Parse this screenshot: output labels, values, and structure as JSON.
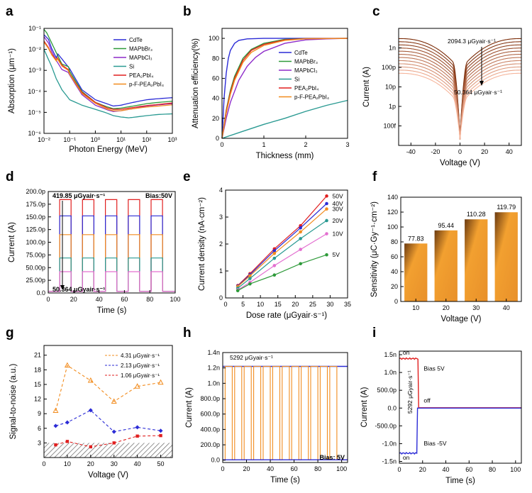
{
  "panel_labels": [
    "a",
    "b",
    "c",
    "d",
    "e",
    "f",
    "g",
    "h",
    "i"
  ],
  "chart_data": [
    {
      "panel": "a",
      "type": "line",
      "xlabel": "Photon Energy (MeV)",
      "ylabel": "Absorption (μm⁻¹)",
      "xscale": "log",
      "yscale": "log",
      "xlim": [
        0.01,
        1000
      ],
      "ylim": [
        1e-06,
        0.1
      ],
      "xticks": [
        "10⁻²",
        "10⁻¹",
        "10⁰",
        "10¹",
        "10²",
        "10³"
      ],
      "yticks": [
        "10⁻⁶",
        "10⁻⁵",
        "10⁻⁴",
        "10⁻³",
        "10⁻²",
        "10⁻¹"
      ],
      "legend_position": "top-right",
      "series": [
        {
          "name": "CdTe",
          "color": "#2b2bd6",
          "x": [
            0.01,
            0.015,
            0.02,
            0.03,
            0.035,
            0.05,
            0.1,
            0.3,
            1,
            3,
            5,
            10,
            30,
            100,
            300,
            1000
          ],
          "y": [
            0.05,
            0.03,
            0.011,
            0.004,
            0.006,
            0.0035,
            0.0012,
            0.00012,
            4e-05,
            2.5e-05,
            2e-05,
            2.2e-05,
            3e-05,
            4e-05,
            4.5e-05,
            5e-05
          ]
        },
        {
          "name": "MAPbBr₃",
          "color": "#2e9a3a",
          "x": [
            0.01,
            0.013,
            0.02,
            0.03,
            0.05,
            0.09,
            0.1,
            0.3,
            1,
            3,
            5,
            10,
            30,
            100,
            300,
            1000
          ],
          "y": [
            0.09,
            0.06,
            0.02,
            0.007,
            0.002,
            0.0015,
            0.0009,
            0.0001,
            3e-05,
            1.8e-05,
            1.5e-05,
            1.6e-05,
            2e-05,
            2.6e-05,
            3e-05,
            3.4e-05
          ]
        },
        {
          "name": "MAPbCl₃",
          "color": "#8d2bc9",
          "x": [
            0.01,
            0.015,
            0.02,
            0.03,
            0.05,
            0.088,
            0.1,
            0.3,
            1,
            3,
            5,
            10,
            30,
            100,
            300,
            1000
          ],
          "y": [
            0.04,
            0.02,
            0.008,
            0.003,
            0.0011,
            0.0008,
            0.0006,
            7e-05,
            2.2e-05,
            1.3e-05,
            1.1e-05,
            1.2e-05,
            1.5e-05,
            2e-05,
            2.3e-05,
            2.6e-05
          ]
        },
        {
          "name": "Si",
          "color": "#2a9a92",
          "x": [
            0.01,
            0.02,
            0.03,
            0.05,
            0.1,
            0.3,
            1,
            3,
            5,
            10,
            20,
            30,
            100,
            300,
            1000
          ],
          "y": [
            0.01,
            0.0015,
            0.0004,
            0.00012,
            4e-05,
            2.2e-05,
            1.4e-05,
            9e-06,
            7e-06,
            6e-06,
            5.5e-06,
            5.8e-06,
            7e-06,
            8e-06,
            8.5e-06
          ]
        },
        {
          "name": "PEA₂PbI₄",
          "color": "#e01f1f",
          "x": [
            0.01,
            0.015,
            0.02,
            0.03,
            0.033,
            0.05,
            0.088,
            0.1,
            0.3,
            1,
            3,
            5,
            10,
            30,
            100,
            300,
            1000
          ],
          "y": [
            0.025,
            0.012,
            0.006,
            0.003,
            0.004,
            0.0018,
            0.0011,
            0.0007,
            9e-05,
            3e-05,
            1.6e-05,
            1.4e-05,
            1.4e-05,
            1.7e-05,
            2.1e-05,
            2.4e-05,
            2.8e-05
          ]
        },
        {
          "name": "p-F-PEA₂PbI₄",
          "color": "#f28c1e",
          "x": [
            0.01,
            0.015,
            0.02,
            0.03,
            0.033,
            0.05,
            0.088,
            0.1,
            0.3,
            1,
            3,
            5,
            10,
            30,
            100,
            300,
            1000
          ],
          "y": [
            0.022,
            0.011,
            0.0055,
            0.0028,
            0.0036,
            0.0016,
            0.001,
            0.00065,
            8e-05,
            2.7e-05,
            1.4e-05,
            1.2e-05,
            1.2e-05,
            1.5e-05,
            1.8e-05,
            2e-05,
            2.3e-05
          ]
        }
      ]
    },
    {
      "panel": "b",
      "type": "line",
      "xlabel": "Thickness (mm)",
      "ylabel": "Attenuation efficiency(%)",
      "xlim": [
        0,
        3
      ],
      "ylim": [
        0,
        110
      ],
      "xticks": [
        "0",
        "1",
        "2",
        "3"
      ],
      "yticks": [
        "0",
        "20",
        "40",
        "60",
        "80",
        "100"
      ],
      "legend_position": "right",
      "series": [
        {
          "name": "CdTe",
          "color": "#2b2bd6",
          "x": [
            0,
            0.05,
            0.1,
            0.15,
            0.2,
            0.3,
            0.4,
            0.6,
            1,
            3
          ],
          "y": [
            0,
            40,
            65,
            80,
            88,
            95,
            98,
            99.5,
            100,
            100
          ]
        },
        {
          "name": "MAPbBr₃",
          "color": "#2e9a3a",
          "x": [
            0,
            0.1,
            0.2,
            0.3,
            0.5,
            0.7,
            1,
            1.5,
            2,
            3
          ],
          "y": [
            0,
            28,
            48,
            62,
            80,
            89,
            95,
            99,
            99.8,
            100
          ]
        },
        {
          "name": "MAPbCl₃",
          "color": "#8d2bc9",
          "x": [
            0,
            0.1,
            0.2,
            0.4,
            0.6,
            0.8,
            1,
            1.5,
            2,
            2.5,
            3
          ],
          "y": [
            0,
            20,
            36,
            58,
            72,
            81,
            87,
            95,
            98.5,
            99.5,
            100
          ]
        },
        {
          "name": "Si",
          "color": "#2a9a92",
          "x": [
            0,
            0.5,
            1,
            1.5,
            2,
            2.5,
            3
          ],
          "y": [
            0,
            7,
            14,
            20,
            27,
            33,
            38
          ]
        },
        {
          "name": "PEA₂PbI₄",
          "color": "#e01f1f",
          "x": [
            0,
            0.1,
            0.2,
            0.3,
            0.5,
            0.7,
            1,
            1.5,
            2,
            3
          ],
          "y": [
            0,
            27,
            46,
            60,
            78,
            88,
            94,
            98.5,
            99.7,
            100
          ]
        },
        {
          "name": "p-F-PEA₂PbI₄",
          "color": "#f28c1e",
          "x": [
            0,
            0.1,
            0.2,
            0.3,
            0.5,
            0.7,
            1,
            1.5,
            2,
            3
          ],
          "y": [
            0,
            25,
            44,
            58,
            76,
            86,
            93,
            98,
            99.6,
            100
          ]
        }
      ]
    },
    {
      "panel": "c",
      "type": "line",
      "xlabel": "Voltage (V)",
      "ylabel": "Current (A)",
      "xlim": [
        -50,
        50
      ],
      "yscale": "log",
      "ylim": [
        1e-14,
        1e-08
      ],
      "xticks": [
        "-40",
        "-20",
        "0",
        "20",
        "40"
      ],
      "yticks": [
        "100f",
        "1p",
        "10p",
        "100p",
        "1n"
      ],
      "annotations": [
        "2094.3 μGyair·s⁻¹",
        "50.364 μGyair·s⁻¹"
      ],
      "series_count": 12,
      "color_range": [
        "#7a2a06",
        "#f6b59b"
      ],
      "max_current": 3e-09,
      "min_current": 5e-11
    },
    {
      "panel": "d",
      "type": "line",
      "xlabel": "Time (s)",
      "ylabel": "Current (A)",
      "xlim": [
        0,
        100
      ],
      "ylim": [
        0,
        200
      ],
      "xticks": [
        "0",
        "20",
        "40",
        "60",
        "80",
        "100"
      ],
      "yticks": [
        "0.0",
        "25.00p",
        "50.00p",
        "75.00p",
        "100.0p",
        "125.0p",
        "150.0p",
        "175.0p",
        "200.0p"
      ],
      "annotations": [
        "419.85 μGyair·s⁻¹",
        "50.364 μGyair·s⁻¹",
        "Bias:50V"
      ],
      "on_periods": [
        [
          9,
          18
        ],
        [
          27,
          36
        ],
        [
          45,
          54
        ],
        [
          63,
          72
        ],
        [
          81,
          90
        ]
      ],
      "series": [
        {
          "color": "#e01f1f",
          "on_value": 184,
          "off_value": 3
        },
        {
          "color": "#2b2bd6",
          "on_value": 152,
          "off_value": 3
        },
        {
          "color": "#f28c1e",
          "on_value": 115,
          "off_value": 3
        },
        {
          "color": "#2a9a92",
          "on_value": 69,
          "off_value": 3
        },
        {
          "color": "#e36fd0",
          "on_value": 42,
          "off_value": 3
        }
      ]
    },
    {
      "panel": "e",
      "type": "scatter",
      "xlabel": "Dose rate (μGyair·s⁻¹)",
      "ylabel": "Current density (nA·cm⁻²)",
      "xlim": [
        0,
        35
      ],
      "ylim": [
        0,
        4
      ],
      "xticks": [
        "0",
        "5",
        "10",
        "15",
        "20",
        "25",
        "30",
        "35"
      ],
      "yticks": [
        "0",
        "1",
        "2",
        "3",
        "4"
      ],
      "x": [
        3.5,
        7,
        14,
        21.5,
        29
      ],
      "series": [
        {
          "name": "50V",
          "color": "#e01f1f",
          "values": [
            0.46,
            0.9,
            1.82,
            2.68,
            3.78
          ]
        },
        {
          "name": "40V",
          "color": "#2b2bd6",
          "values": [
            0.44,
            0.86,
            1.75,
            2.6,
            3.5
          ]
        },
        {
          "name": "30V",
          "color": "#f28c1e",
          "values": [
            0.42,
            0.82,
            1.65,
            2.45,
            3.3
          ]
        },
        {
          "name": "20V",
          "color": "#2a9a92",
          "values": [
            0.36,
            0.72,
            1.47,
            2.2,
            2.87
          ]
        },
        {
          "name": "10V",
          "color": "#e36fd0",
          "values": [
            0.3,
            0.58,
            1.2,
            1.8,
            2.38
          ]
        },
        {
          "name": "5V",
          "color": "#2e9a3a",
          "values": [
            0.27,
            0.52,
            0.85,
            1.27,
            1.6
          ]
        }
      ]
    },
    {
      "panel": "f",
      "type": "bar",
      "xlabel": "Voltage (V)",
      "ylabel": "Sensitivity (μC·Gy⁻¹·cm⁻²)",
      "ylim": [
        0,
        140
      ],
      "categories": [
        "10",
        "20",
        "30",
        "40"
      ],
      "values": [
        77.83,
        95.44,
        110.28,
        119.79
      ],
      "labels": [
        "77.83",
        "95.44",
        "110.28",
        "119.79"
      ],
      "yticks": [
        "0",
        "20",
        "40",
        "60",
        "80",
        "100",
        "120",
        "140"
      ],
      "bar_color": "#f2a030"
    },
    {
      "panel": "g",
      "type": "line",
      "xlabel": "Voltage (V)",
      "ylabel": "Signal-to-noise (a.u.)",
      "xlim": [
        0,
        55
      ],
      "ylim": [
        0,
        23
      ],
      "xticks": [
        "0",
        "10",
        "20",
        "30",
        "40",
        "50"
      ],
      "yticks": [
        "3",
        "6",
        "9",
        "12",
        "15",
        "18",
        "21"
      ],
      "hatch_below": 3,
      "x": [
        5,
        10,
        20,
        30,
        40,
        50
      ],
      "series": [
        {
          "name": "4.31 μGyair·s⁻¹",
          "color": "#f28c1e",
          "marker": "triangle",
          "values": [
            9.6,
            18.9,
            15.8,
            11.5,
            14.6,
            15.4
          ]
        },
        {
          "name": "2.13 μGyair·s⁻¹",
          "color": "#2b2bd6",
          "marker": "diamond",
          "values": [
            6.5,
            7.2,
            9.7,
            5.3,
            6.2,
            5.5
          ]
        },
        {
          "name": "1.06 μGyair·s⁻¹",
          "color": "#e01f1f",
          "marker": "square",
          "values": [
            2.6,
            3.3,
            2.2,
            3.0,
            4.4,
            4.5
          ]
        }
      ]
    },
    {
      "panel": "h",
      "type": "line",
      "xlabel": "Time (s)",
      "ylabel": "Current (A)",
      "xlim": [
        0,
        105
      ],
      "ylim": [
        -0.03,
        1.4
      ],
      "xticks": [
        "0",
        "20",
        "40",
        "60",
        "80",
        "100"
      ],
      "yticks": [
        "0.0",
        "200.0p",
        "400.0p",
        "600.0p",
        "800.0p",
        "1.0n",
        "1.2n",
        "1.4n"
      ],
      "annotations": [
        "5292 μGyair·s⁻¹",
        "Bias: 5V"
      ],
      "on_value": 1.22,
      "off_value": 0.005,
      "pulse_period": 8,
      "pulse_on": 6,
      "pulse_count": 12,
      "line_color": "#f28c1e",
      "ref_color": "#2b2bd6"
    },
    {
      "panel": "i",
      "type": "line",
      "xlabel": "Time (s)",
      "ylabel": "Current (A)",
      "xlim": [
        0,
        105
      ],
      "ylim": [
        -1.55,
        1.6
      ],
      "xticks": [
        "0",
        "20",
        "40",
        "60",
        "80",
        "100"
      ],
      "yticks": [
        "-1.5n",
        "-1.0n",
        "-500.0p",
        "0.0",
        "500.0p",
        "1.0n",
        "1.5n"
      ],
      "annotations": [
        "on",
        "Bias 5V",
        "off",
        "Bias -5V",
        "on",
        "5292 μGyair·s⁻¹"
      ],
      "series": [
        {
          "name": "Bias 5V",
          "color": "#e01f1f",
          "on_value": 1.39,
          "off_value": 0.01,
          "switch_off": 16
        },
        {
          "name": "Bias -5V",
          "color": "#2b2bd6",
          "on_value": -1.27,
          "off_value": 0.0,
          "switch_off": 15
        }
      ]
    }
  ]
}
